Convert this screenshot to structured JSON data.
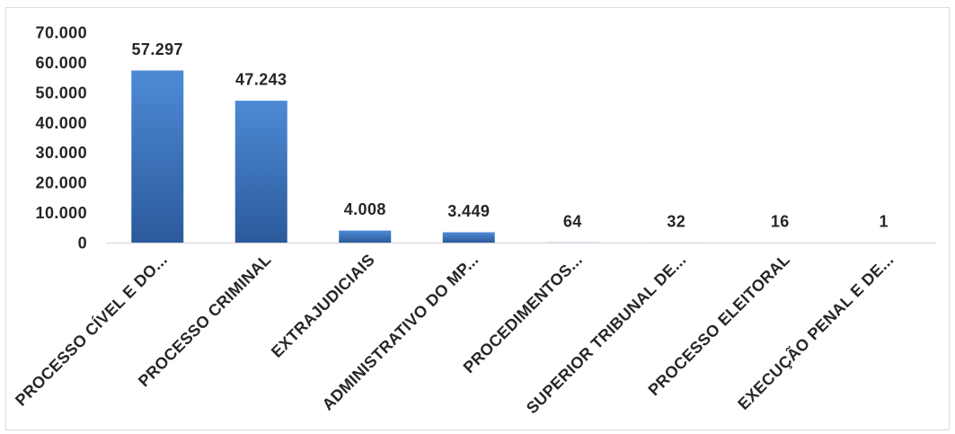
{
  "chart_data": {
    "type": "bar",
    "categories": [
      "PROCESSO CÍVEL E DO...",
      "PROCESSO CRIMINAL",
      "EXTRAJUDICIAIS",
      "ADMINISTRATIVO DO MP...",
      "PROCEDIMENTOS...",
      "SUPERIOR TRIBUNAL DE...",
      "PROCESSO ELEITORAL",
      "EXECUÇÃO PENAL E DE..."
    ],
    "values": [
      57297,
      47243,
      4008,
      3449,
      64,
      32,
      16,
      1
    ],
    "data_labels": [
      "57.297",
      "47.243",
      "4.008",
      "3.449",
      "64",
      "32",
      "16",
      "1"
    ],
    "yticks": [
      0,
      10000,
      20000,
      30000,
      40000,
      50000,
      60000,
      70000
    ],
    "ytick_labels": [
      "0",
      "10.000",
      "20.000",
      "30.000",
      "40.000",
      "50.000",
      "60.000",
      "70.000"
    ],
    "ylim": [
      0,
      70000
    ],
    "grid": false,
    "colors": {
      "bar_top": "#4d8ad6",
      "bar_bottom": "#2b5a9b",
      "axis": "#d9d9d9",
      "text": "#262626",
      "border": "#d6dce5"
    }
  }
}
